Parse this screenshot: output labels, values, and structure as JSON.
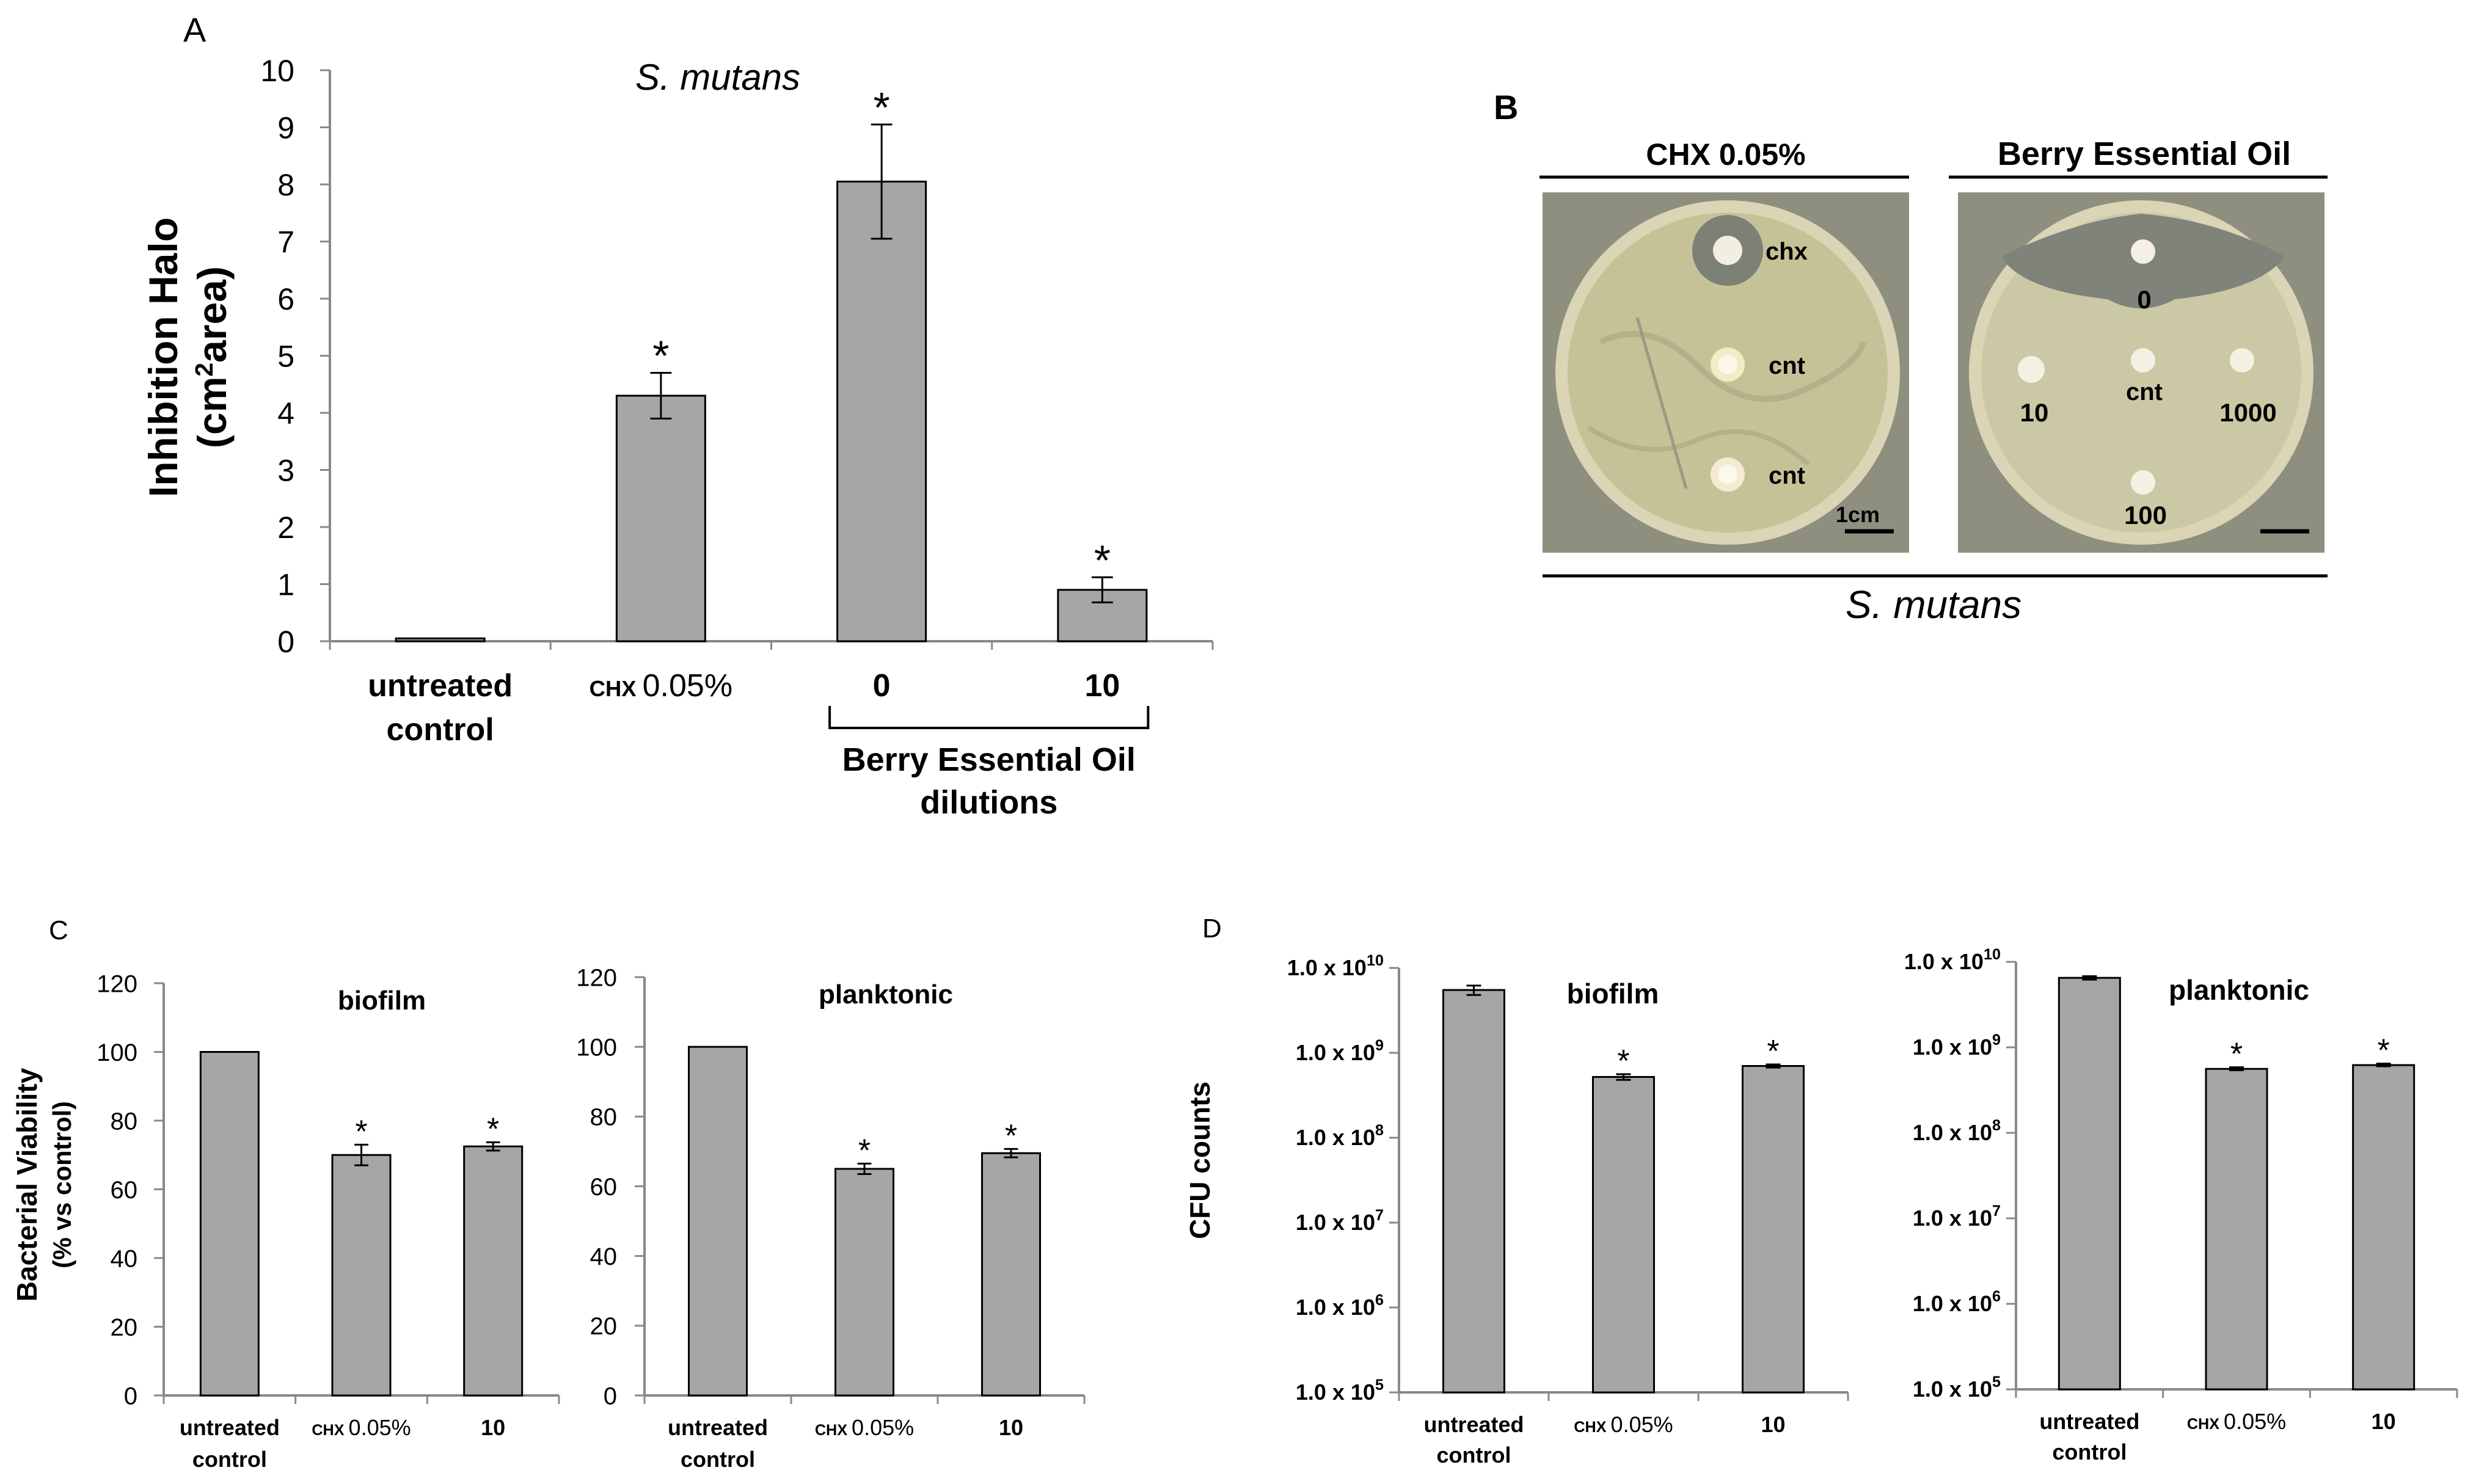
{
  "panels": {
    "A": {
      "letter": "A"
    },
    "B": {
      "letter": "B",
      "left_header": "CHX 0.05%",
      "right_header": "Berry Essential Oil",
      "organism": "S. mutans",
      "left_plate_labels": [
        "chx",
        "cnt",
        "cnt"
      ],
      "right_plate_labels": [
        "0",
        "10",
        "cnt",
        "1000",
        "100"
      ],
      "scale_label": "1cm"
    },
    "C": {
      "letter": "C"
    },
    "D": {
      "letter": "D"
    }
  },
  "colors": {
    "bar": "#a6a6a6",
    "bar_stroke": "#000000",
    "plate_bg": "#8a8a78",
    "agar": "#c9c69c",
    "halo": "#7f8176",
    "disk": "#f3f1e6"
  },
  "chart_data": [
    {
      "id": "A",
      "type": "bar",
      "title": "S. mutans",
      "ylabel_line1": "Inhibition Halo",
      "ylabel_line2_pre": "(cm",
      "ylabel_line2_sup": "2",
      "ylabel_line2_post": "area)",
      "ylim": [
        0,
        10
      ],
      "yticks": [
        0,
        1,
        2,
        3,
        4,
        5,
        6,
        7,
        8,
        9,
        10
      ],
      "categories": [
        {
          "lines": [
            "untreated",
            "control"
          ]
        },
        {
          "lines": [
            "CHX 0.05%"
          ]
        },
        {
          "lines": [
            "0"
          ]
        },
        {
          "lines": [
            "10"
          ]
        }
      ],
      "values": [
        0.05,
        4.3,
        8.05,
        0.9
      ],
      "errors": [
        0,
        0.4,
        1.0,
        0.22
      ],
      "significant": [
        false,
        true,
        true,
        true
      ],
      "sig_marker": "*",
      "group_label": [
        "Berry Essential Oil",
        "dilutions"
      ]
    },
    {
      "id": "C1",
      "type": "bar",
      "title": "biofilm",
      "ylabel_line1": "Bacterial Viability",
      "ylabel_line2": "(% vs control)",
      "ylim": [
        0,
        120
      ],
      "yticks": [
        0,
        20,
        40,
        60,
        80,
        100,
        120
      ],
      "categories": [
        {
          "lines": [
            "untreated",
            "control"
          ]
        },
        {
          "lines": [
            "CHX 0.05%"
          ]
        },
        {
          "lines": [
            "10"
          ]
        }
      ],
      "values": [
        100,
        70,
        72.5
      ],
      "errors": [
        0,
        3,
        1.2
      ],
      "significant": [
        false,
        true,
        true
      ],
      "sig_marker": "*"
    },
    {
      "id": "C2",
      "type": "bar",
      "title": "planktonic",
      "ylim": [
        0,
        120
      ],
      "yticks": [
        0,
        20,
        40,
        60,
        80,
        100,
        120
      ],
      "categories": [
        {
          "lines": [
            "untreated",
            "control"
          ]
        },
        {
          "lines": [
            "CHX 0.05%"
          ]
        },
        {
          "lines": [
            "10"
          ]
        }
      ],
      "values": [
        100,
        65,
        69.5
      ],
      "errors": [
        0,
        1.5,
        1.2
      ],
      "significant": [
        false,
        true,
        true
      ],
      "sig_marker": "*"
    },
    {
      "id": "D1",
      "type": "bar",
      "title": "biofilm",
      "ylabel_line1": "CFU counts",
      "y_scale": "log",
      "ylim": [
        100000,
        10000000000
      ],
      "yticks": [
        {
          "value": 100000,
          "mantissa": "1.0 x 10",
          "exp": "5"
        },
        {
          "value": 1000000,
          "mantissa": "1.0 x 10",
          "exp": "6"
        },
        {
          "value": 10000000,
          "mantissa": "1.0 x 10",
          "exp": "7"
        },
        {
          "value": 100000000,
          "mantissa": "1.0 x 10",
          "exp": "8"
        },
        {
          "value": 1000000000,
          "mantissa": "1.0 x 10",
          "exp": "9"
        },
        {
          "value": 10000000000,
          "mantissa": "1.0 x 10",
          "exp": "10"
        }
      ],
      "categories": [
        {
          "lines": [
            "untreated",
            "control"
          ]
        },
        {
          "lines": [
            "CHX 0.05%"
          ]
        },
        {
          "lines": [
            "10"
          ]
        }
      ],
      "values": [
        5500000000,
        520000000,
        700000000
      ],
      "errors": [
        [
          4800000000,
          6200000000
        ],
        [
          480000000,
          560000000
        ],
        [
          670000000,
          730000000
        ]
      ],
      "significant": [
        false,
        true,
        true
      ],
      "sig_marker": "*"
    },
    {
      "id": "D2",
      "type": "bar",
      "title": "planktonic",
      "y_scale": "log",
      "ylim": [
        100000,
        10000000000
      ],
      "yticks": [
        {
          "value": 100000,
          "mantissa": "1.0 x 10",
          "exp": "5"
        },
        {
          "value": 1000000,
          "mantissa": "1.0 x 10",
          "exp": "6"
        },
        {
          "value": 10000000,
          "mantissa": "1.0 x 10",
          "exp": "7"
        },
        {
          "value": 100000000,
          "mantissa": "1.0 x 10",
          "exp": "8"
        },
        {
          "value": 1000000000,
          "mantissa": "1.0 x 10",
          "exp": "9"
        },
        {
          "value": 10000000000,
          "mantissa": "1.0 x 10",
          "exp": "10"
        }
      ],
      "categories": [
        {
          "lines": [
            "untreated",
            "control"
          ]
        },
        {
          "lines": [
            "CHX 0.05%"
          ]
        },
        {
          "lines": [
            "10"
          ]
        }
      ],
      "values": [
        6500000000,
        560000000,
        620000000
      ],
      "errors": [
        [
          6200000000,
          6800000000
        ],
        [
          540000000,
          585000000
        ],
        [
          600000000,
          645000000
        ]
      ],
      "significant": [
        false,
        true,
        true
      ],
      "sig_marker": "*"
    }
  ]
}
